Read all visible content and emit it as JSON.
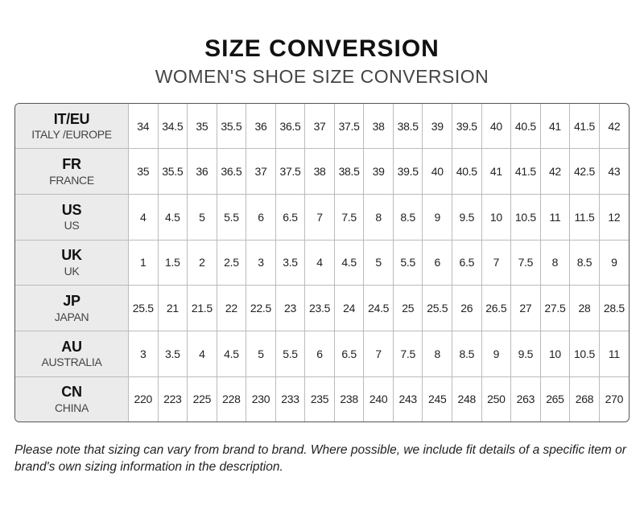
{
  "title": "SIZE CONVERSION",
  "subtitle": "WOMEN'S SHOE SIZE CONVERSION",
  "rows": [
    {
      "code": "IT/EU",
      "country": "ITALY /EUROPE",
      "values": [
        "34",
        "34.5",
        "35",
        "35.5",
        "36",
        "36.5",
        "37",
        "37.5",
        "38",
        "38.5",
        "39",
        "39.5",
        "40",
        "40.5",
        "41",
        "41.5",
        "42"
      ]
    },
    {
      "code": "FR",
      "country": "FRANCE",
      "values": [
        "35",
        "35.5",
        "36",
        "36.5",
        "37",
        "37.5",
        "38",
        "38.5",
        "39",
        "39.5",
        "40",
        "40.5",
        "41",
        "41.5",
        "42",
        "42.5",
        "43"
      ]
    },
    {
      "code": "US",
      "country": "US",
      "values": [
        "4",
        "4.5",
        "5",
        "5.5",
        "6",
        "6.5",
        "7",
        "7.5",
        "8",
        "8.5",
        "9",
        "9.5",
        "10",
        "10.5",
        "11",
        "11.5",
        "12"
      ]
    },
    {
      "code": "UK",
      "country": "UK",
      "values": [
        "1",
        "1.5",
        "2",
        "2.5",
        "3",
        "3.5",
        "4",
        "4.5",
        "5",
        "5.5",
        "6",
        "6.5",
        "7",
        "7.5",
        "8",
        "8.5",
        "9"
      ]
    },
    {
      "code": "JP",
      "country": "JAPAN",
      "values": [
        "25.5",
        "21",
        "21.5",
        "22",
        "22.5",
        "23",
        "23.5",
        "24",
        "24.5",
        "25",
        "25.5",
        "26",
        "26.5",
        "27",
        "27.5",
        "28",
        "28.5"
      ]
    },
    {
      "code": "AU",
      "country": "AUSTRALIA",
      "values": [
        "3",
        "3.5",
        "4",
        "4.5",
        "5",
        "5.5",
        "6",
        "6.5",
        "7",
        "7.5",
        "8",
        "8.5",
        "9",
        "9.5",
        "10",
        "10.5",
        "11"
      ]
    },
    {
      "code": "CN",
      "country": "CHINA",
      "values": [
        "220",
        "223",
        "225",
        "228",
        "230",
        "233",
        "235",
        "238",
        "240",
        "243",
        "245",
        "248",
        "250",
        "263",
        "265",
        "268",
        "270"
      ]
    }
  ],
  "note": "Please note that sizing can vary from brand to brand. Where possible, we include fit details of a specific item or brand's own sizing information in the description.",
  "colors": {
    "header_bg": "#ebebeb",
    "border": "#bbbbbb"
  }
}
